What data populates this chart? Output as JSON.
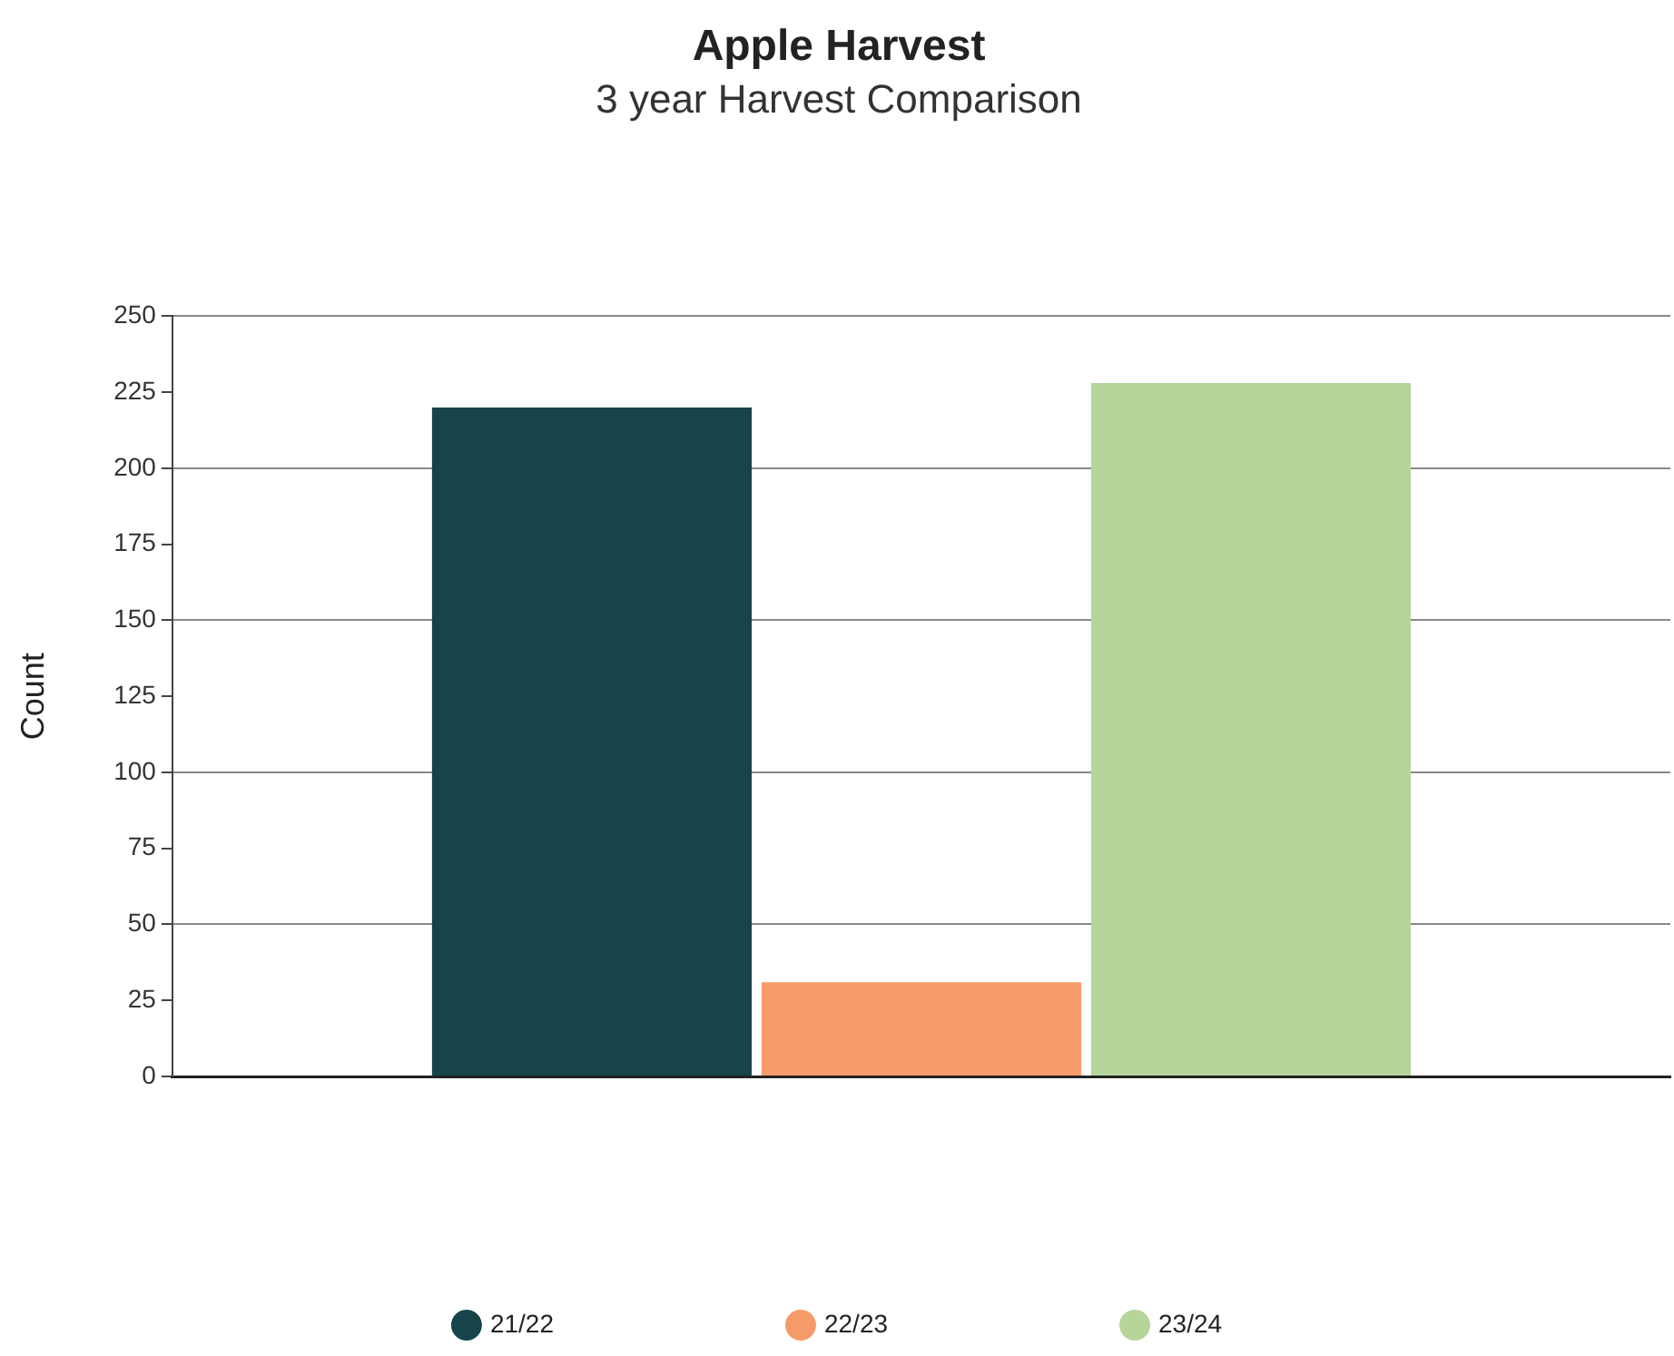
{
  "chart_data": {
    "type": "bar",
    "title": "Apple Harvest",
    "subtitle": "3 year Harvest Comparison",
    "ylabel": "Count",
    "categories": [
      null
    ],
    "series": [
      {
        "name": "21/22",
        "color": "#16444a",
        "values": [
          220
        ]
      },
      {
        "name": "22/23",
        "color": "#f79a6a",
        "values": [
          31
        ]
      },
      {
        "name": "23/24",
        "color": "#b6d59a",
        "values": [
          228
        ]
      }
    ],
    "ylim": [
      0,
      250
    ],
    "yticks": [
      0,
      25,
      50,
      75,
      100,
      125,
      150,
      175,
      200,
      225,
      250
    ],
    "grid": "y",
    "legend": "bottom"
  }
}
